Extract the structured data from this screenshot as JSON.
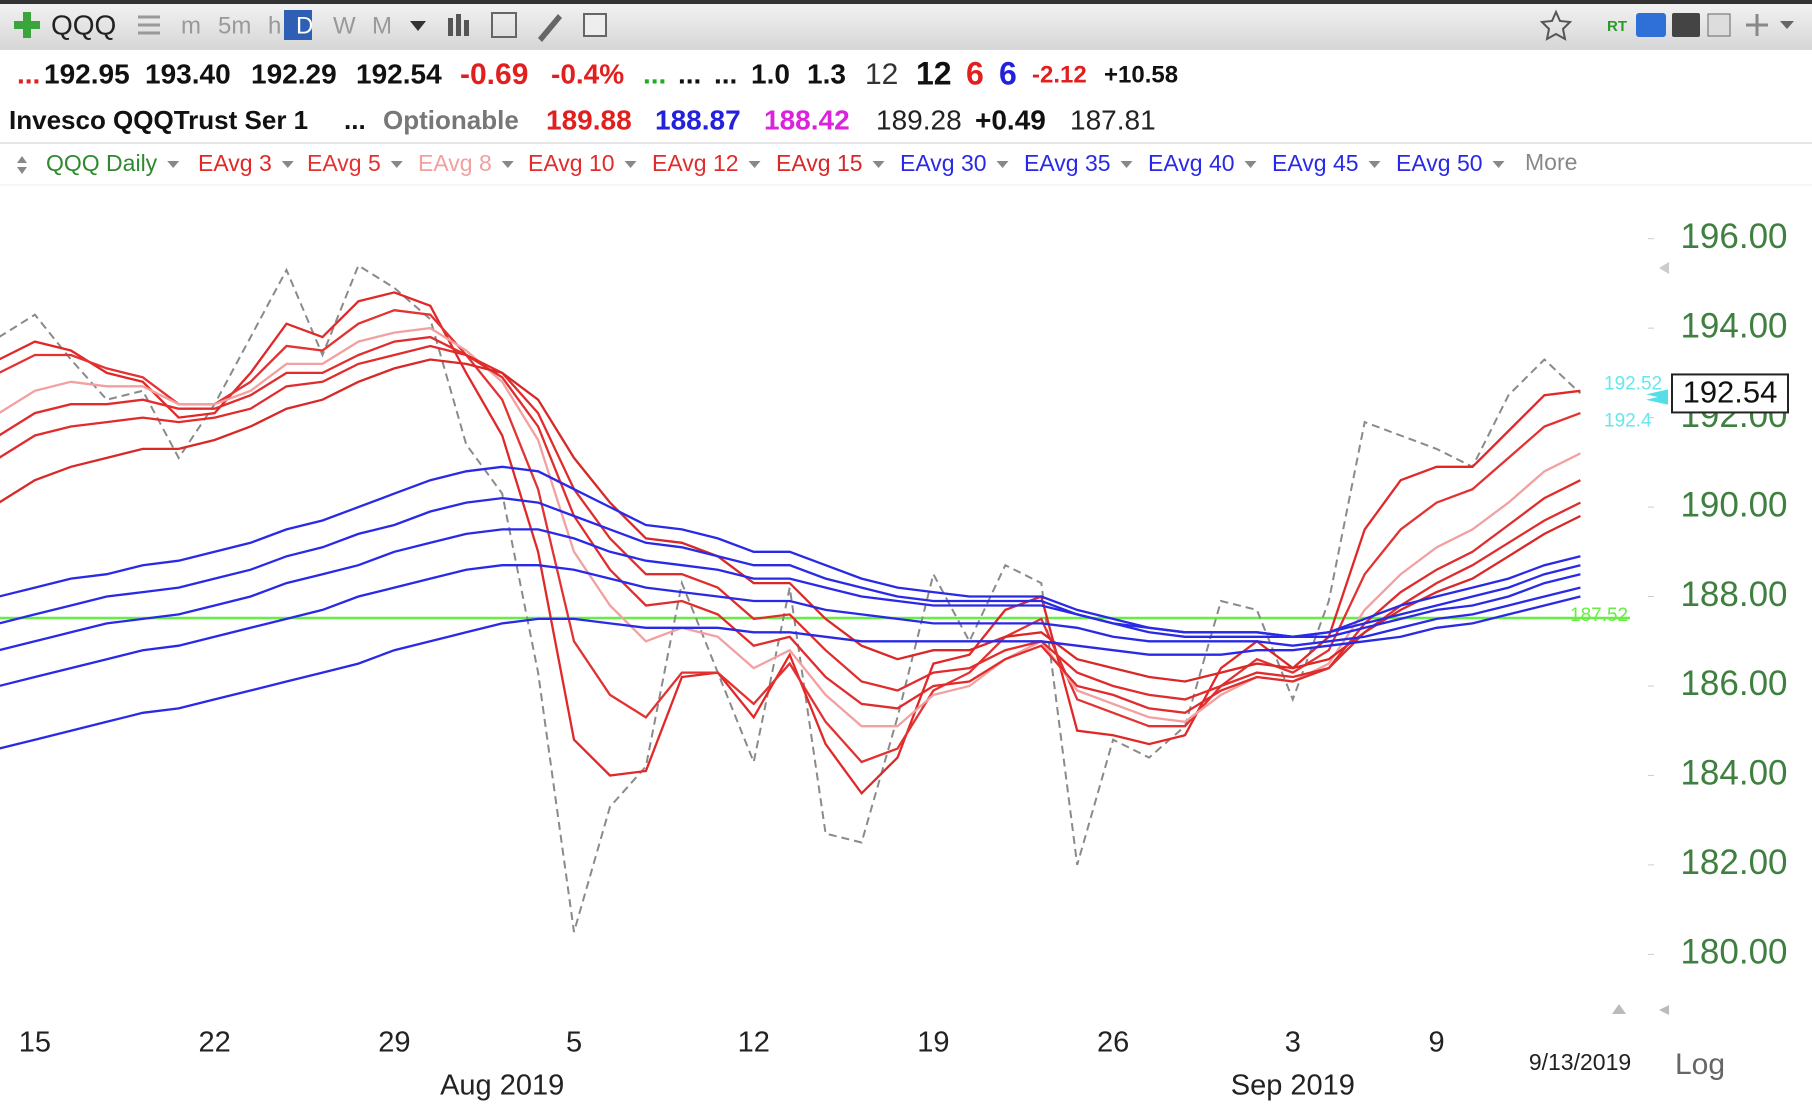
{
  "toolbar": {
    "symbol": "QQQ",
    "periods": [
      "m",
      "5m",
      "h",
      "D",
      "W",
      "M"
    ],
    "rt": "RT"
  },
  "quote": [
    "...",
    "192.95",
    "193.40",
    "192.29",
    "192.54",
    "-0.69",
    "-0.4%",
    "...",
    "...",
    "...",
    "1.0",
    "1.3",
    "12",
    "12",
    "6",
    "6",
    "-2.12",
    "+10.58"
  ],
  "info": [
    "Invesco QQQTrust Ser 1",
    "...",
    "Optionable",
    "189.88",
    "188.87",
    "188.42",
    "189.28",
    "+0.49",
    "187.81"
  ],
  "legend_more": "More",
  "log_button": "Log",
  "chart_data": {
    "type": "line",
    "categories": [
      null,
      "15",
      null,
      null,
      null,
      null,
      "22",
      null,
      null,
      null,
      null,
      "29",
      null,
      null,
      null,
      null,
      "5",
      null,
      null,
      null,
      null,
      "12",
      null,
      null,
      null,
      null,
      "19",
      null,
      null,
      null,
      null,
      "26",
      null,
      null,
      null,
      null,
      "3",
      null,
      null,
      null,
      "9",
      null,
      null,
      null,
      null
    ],
    "month_categories": [
      null,
      null,
      null,
      null,
      null,
      null,
      null,
      null,
      null,
      null,
      null,
      null,
      null,
      null,
      "Aug 2019",
      null,
      null,
      null,
      null,
      null,
      null,
      null,
      null,
      null,
      null,
      null,
      null,
      null,
      null,
      null,
      null,
      null,
      null,
      null,
      null,
      null,
      "Sep 2019",
      null,
      null,
      null,
      null,
      null,
      null,
      null,
      null
    ],
    "last_date": "9/13/2019",
    "ylim": [
      178.6,
      197.2
    ],
    "yticks": [
      {
        "value": 180,
        "label": "180.00"
      },
      {
        "value": 182,
        "label": "182.00"
      },
      {
        "value": 184,
        "label": "184.00"
      },
      {
        "value": 186,
        "label": "186.00"
      },
      {
        "value": 188,
        "label": "188.00"
      },
      {
        "value": 190,
        "label": "190.00"
      },
      {
        "value": 192,
        "label": "192.00"
      },
      {
        "value": 194,
        "label": "194.00"
      },
      {
        "value": 196,
        "label": "196.00"
      }
    ],
    "grid": false,
    "level_line": {
      "value": 187.52,
      "color": "#66ee44"
    },
    "markers": [
      192.52,
      192.4
    ],
    "last_price": {
      "value": 192.54,
      "label": "192.54"
    },
    "series": [
      {
        "name": "QQQ Daily",
        "color": "#8a8a8a",
        "dashed": true,
        "label_color": "#2f8a2f",
        "values": [
          193.8,
          194.3,
          193.3,
          192.4,
          192.6,
          191.1,
          192.3,
          193.8,
          195.3,
          193.4,
          195.4,
          194.9,
          194.2,
          191.4,
          190.3,
          186.3,
          180.5,
          183.3,
          184.2,
          188.3,
          186.3,
          184.3,
          188.2,
          182.7,
          182.5,
          185.3,
          188.5,
          187.0,
          188.7,
          188.3,
          182.0,
          184.8,
          184.4,
          185.1,
          187.9,
          187.7,
          185.7,
          187.9,
          191.9,
          191.6,
          191.3,
          190.9,
          192.5,
          193.3,
          192.54
        ]
      },
      {
        "name": "EAvg 3",
        "color": "#e02828",
        "values": [
          193.3,
          193.7,
          193.5,
          193.0,
          192.8,
          192.0,
          192.1,
          193.0,
          194.1,
          193.8,
          194.6,
          194.8,
          194.5,
          193.0,
          191.6,
          189.0,
          184.8,
          184.0,
          184.1,
          186.2,
          186.3,
          185.3,
          186.7,
          184.7,
          183.6,
          184.4,
          186.5,
          186.7,
          187.7,
          188.0,
          185.0,
          184.9,
          184.7,
          184.9,
          186.4,
          187.0,
          186.4,
          187.1,
          189.5,
          190.6,
          190.9,
          190.9,
          191.7,
          192.5,
          192.6
        ]
      },
      {
        "name": "EAvg 5",
        "color": "#e23232",
        "values": [
          193.0,
          193.4,
          193.4,
          193.1,
          192.9,
          192.3,
          192.3,
          192.8,
          193.6,
          193.5,
          194.1,
          194.4,
          194.3,
          193.4,
          192.4,
          190.4,
          187.0,
          185.8,
          185.3,
          186.3,
          186.3,
          185.6,
          186.5,
          185.2,
          184.3,
          184.6,
          185.9,
          186.3,
          187.1,
          187.5,
          185.7,
          185.4,
          185.1,
          185.1,
          186.0,
          186.6,
          186.3,
          186.8,
          188.5,
          189.5,
          190.1,
          190.4,
          191.1,
          191.8,
          192.1
        ]
      },
      {
        "name": "EAvg 8",
        "color": "#f2a0a0",
        "values": [
          192.1,
          192.6,
          192.8,
          192.7,
          192.7,
          192.3,
          192.3,
          192.6,
          193.2,
          193.2,
          193.7,
          193.9,
          194.0,
          193.5,
          192.8,
          191.5,
          189.0,
          187.8,
          187.0,
          187.3,
          187.1,
          186.4,
          186.8,
          185.8,
          185.1,
          185.1,
          185.8,
          186.0,
          186.6,
          187.0,
          185.9,
          185.6,
          185.3,
          185.2,
          185.8,
          186.2,
          186.1,
          186.5,
          187.7,
          188.5,
          189.1,
          189.5,
          190.1,
          190.8,
          191.2
        ]
      },
      {
        "name": "EAvg 10",
        "color": "#e02c2c",
        "values": [
          191.6,
          192.1,
          192.3,
          192.3,
          192.4,
          192.2,
          192.2,
          192.5,
          193.0,
          193.0,
          193.4,
          193.7,
          193.8,
          193.4,
          192.9,
          191.8,
          189.8,
          188.6,
          187.8,
          187.9,
          187.6,
          186.9,
          187.1,
          186.2,
          185.6,
          185.5,
          186.0,
          186.1,
          186.6,
          186.9,
          186.0,
          185.8,
          185.5,
          185.4,
          185.9,
          186.2,
          186.1,
          186.4,
          187.4,
          188.1,
          188.6,
          189.0,
          189.6,
          190.2,
          190.6
        ]
      },
      {
        "name": "EAvg 12",
        "color": "#e02c2c",
        "values": [
          191.1,
          191.6,
          191.8,
          191.9,
          192.0,
          191.9,
          192.0,
          192.2,
          192.7,
          192.8,
          193.2,
          193.4,
          193.6,
          193.4,
          193.0,
          192.1,
          190.4,
          189.3,
          188.5,
          188.5,
          188.2,
          187.5,
          187.6,
          186.8,
          186.1,
          185.9,
          186.3,
          186.4,
          186.8,
          187.0,
          186.3,
          186.0,
          185.8,
          185.7,
          186.0,
          186.3,
          186.2,
          186.4,
          187.2,
          187.8,
          188.3,
          188.7,
          189.2,
          189.7,
          190.1
        ]
      },
      {
        "name": "EAvg 15",
        "color": "#d82828",
        "values": [
          190.1,
          190.6,
          190.9,
          191.1,
          191.3,
          191.3,
          191.5,
          191.8,
          192.2,
          192.4,
          192.8,
          193.1,
          193.3,
          193.2,
          193.0,
          192.4,
          191.1,
          190.1,
          189.3,
          189.2,
          188.9,
          188.3,
          188.3,
          187.5,
          186.9,
          186.6,
          186.8,
          186.8,
          187.1,
          187.2,
          186.6,
          186.4,
          186.2,
          186.1,
          186.3,
          186.5,
          186.4,
          186.6,
          187.2,
          187.7,
          188.1,
          188.4,
          188.9,
          189.4,
          189.8
        ]
      },
      {
        "name": "EAvg 30",
        "color": "#2a2ae6",
        "values": [
          188.0,
          188.2,
          188.4,
          188.5,
          188.7,
          188.8,
          189.0,
          189.2,
          189.5,
          189.7,
          190.0,
          190.3,
          190.6,
          190.8,
          190.9,
          190.8,
          190.4,
          190.0,
          189.6,
          189.5,
          189.3,
          189.0,
          189.0,
          188.7,
          188.4,
          188.2,
          188.1,
          188.0,
          188.0,
          188.0,
          187.7,
          187.5,
          187.3,
          187.2,
          187.2,
          187.2,
          187.1,
          187.2,
          187.5,
          187.8,
          188.0,
          188.2,
          188.4,
          188.7,
          188.9
        ]
      },
      {
        "name": "EAvg 35",
        "color": "#2a2ae6",
        "values": [
          187.4,
          187.6,
          187.8,
          188.0,
          188.1,
          188.2,
          188.4,
          188.6,
          188.9,
          189.1,
          189.4,
          189.6,
          189.9,
          190.1,
          190.2,
          190.1,
          189.8,
          189.5,
          189.2,
          189.1,
          188.9,
          188.7,
          188.7,
          188.4,
          188.2,
          188.0,
          187.9,
          187.9,
          187.9,
          187.9,
          187.6,
          187.4,
          187.3,
          187.2,
          187.2,
          187.2,
          187.1,
          187.2,
          187.4,
          187.6,
          187.8,
          188.0,
          188.2,
          188.5,
          188.7
        ]
      },
      {
        "name": "EAvg 40",
        "color": "#2a2ae6",
        "values": [
          186.8,
          187.0,
          187.2,
          187.4,
          187.5,
          187.6,
          187.8,
          188.0,
          188.3,
          188.5,
          188.7,
          189.0,
          189.2,
          189.4,
          189.5,
          189.5,
          189.3,
          189.0,
          188.8,
          188.7,
          188.6,
          188.4,
          188.4,
          188.2,
          188.0,
          187.9,
          187.8,
          187.8,
          187.8,
          187.8,
          187.6,
          187.4,
          187.2,
          187.1,
          187.1,
          187.1,
          187.1,
          187.1,
          187.3,
          187.5,
          187.7,
          187.8,
          188.0,
          188.3,
          188.5
        ]
      },
      {
        "name": "EAvg 45",
        "color": "#2a2ae6",
        "values": [
          186.0,
          186.2,
          186.4,
          186.6,
          186.8,
          186.9,
          187.1,
          187.3,
          187.5,
          187.7,
          188.0,
          188.2,
          188.4,
          188.6,
          188.7,
          188.7,
          188.6,
          188.4,
          188.2,
          188.1,
          188.0,
          187.9,
          187.9,
          187.7,
          187.6,
          187.5,
          187.4,
          187.4,
          187.4,
          187.4,
          187.3,
          187.1,
          187.0,
          187.0,
          187.0,
          187.0,
          186.9,
          187.0,
          187.1,
          187.3,
          187.5,
          187.6,
          187.8,
          188.0,
          188.2
        ]
      },
      {
        "name": "EAvg 50",
        "color": "#2a2ae6",
        "values": [
          184.6,
          184.8,
          185.0,
          185.2,
          185.4,
          185.5,
          185.7,
          185.9,
          186.1,
          186.3,
          186.5,
          186.8,
          187.0,
          187.2,
          187.4,
          187.5,
          187.5,
          187.4,
          187.3,
          187.3,
          187.3,
          187.2,
          187.2,
          187.1,
          187.0,
          187.0,
          187.0,
          187.0,
          187.0,
          187.0,
          186.9,
          186.8,
          186.7,
          186.7,
          186.7,
          186.8,
          186.8,
          186.9,
          187.0,
          187.1,
          187.3,
          187.4,
          187.6,
          187.8,
          188.0
        ]
      }
    ]
  }
}
